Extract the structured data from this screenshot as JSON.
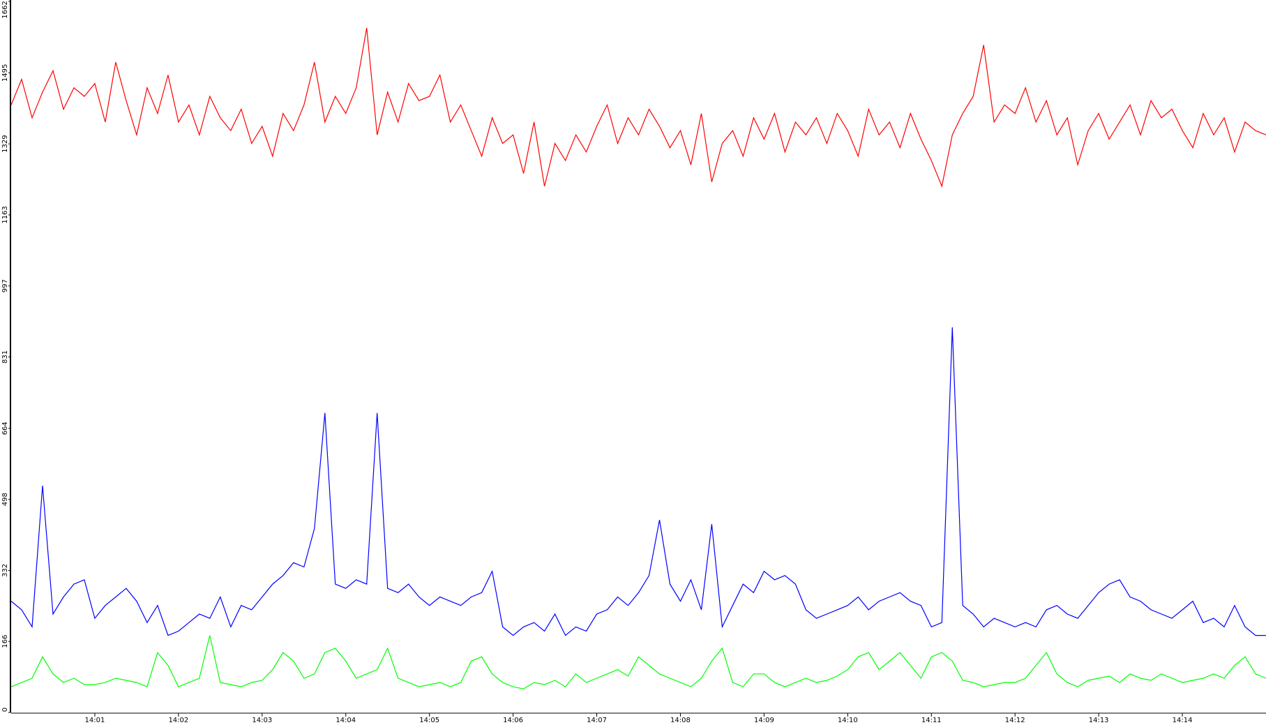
{
  "chart_data": {
    "type": "line",
    "categories": [
      null,
      null,
      null,
      null,
      null,
      null,
      null,
      null,
      "14:01",
      null,
      null,
      null,
      null,
      null,
      null,
      null,
      "14:02",
      null,
      null,
      null,
      null,
      null,
      null,
      null,
      "14:03",
      null,
      null,
      null,
      null,
      null,
      null,
      null,
      "14:04",
      null,
      null,
      null,
      null,
      null,
      null,
      null,
      "14:05",
      null,
      null,
      null,
      null,
      null,
      null,
      null,
      "14:06",
      null,
      null,
      null,
      null,
      null,
      null,
      null,
      "14:07",
      null,
      null,
      null,
      null,
      null,
      null,
      null,
      "14:08",
      null,
      null,
      null,
      null,
      null,
      null,
      null,
      "14:09",
      null,
      null,
      null,
      null,
      null,
      null,
      null,
      "14:10",
      null,
      null,
      null,
      null,
      null,
      null,
      null,
      "14:11",
      null,
      null,
      null,
      null,
      null,
      null,
      null,
      "14:12",
      null,
      null,
      null,
      null,
      null,
      null,
      null,
      "14:13",
      null,
      null,
      null,
      null,
      null,
      null,
      null,
      "14:14",
      null,
      null,
      null,
      null,
      null,
      null,
      null,
      null
    ],
    "series": [
      {
        "color": "#ff0000",
        "values": [
          1420,
          1480,
          1390,
          1450,
          1500,
          1410,
          1460,
          1440,
          1470,
          1380,
          1520,
          1430,
          1350,
          1460,
          1400,
          1490,
          1380,
          1420,
          1350,
          1440,
          1390,
          1360,
          1410,
          1330,
          1370,
          1300,
          1400,
          1360,
          1420,
          1520,
          1380,
          1440,
          1400,
          1460,
          1600,
          1350,
          1450,
          1380,
          1470,
          1430,
          1440,
          1490,
          1380,
          1420,
          1360,
          1300,
          1390,
          1330,
          1350,
          1260,
          1380,
          1230,
          1330,
          1290,
          1350,
          1310,
          1370,
          1420,
          1330,
          1390,
          1350,
          1410,
          1370,
          1320,
          1360,
          1280,
          1400,
          1240,
          1330,
          1360,
          1300,
          1390,
          1340,
          1400,
          1310,
          1380,
          1350,
          1390,
          1330,
          1400,
          1360,
          1300,
          1410,
          1350,
          1380,
          1320,
          1400,
          1340,
          1290,
          1230,
          1350,
          1400,
          1440,
          1560,
          1380,
          1420,
          1400,
          1460,
          1380,
          1430,
          1350,
          1390,
          1280,
          1360,
          1400,
          1340,
          1380,
          1420,
          1350,
          1430,
          1390,
          1410,
          1360,
          1320,
          1400,
          1350,
          1390,
          1310,
          1380,
          1360,
          1350
        ]
      },
      {
        "color": "#0000ff",
        "values": [
          260,
          240,
          200,
          530,
          230,
          270,
          300,
          310,
          220,
          250,
          270,
          290,
          260,
          210,
          250,
          180,
          190,
          210,
          230,
          220,
          270,
          200,
          250,
          240,
          270,
          300,
          320,
          350,
          340,
          430,
          700,
          300,
          290,
          310,
          300,
          700,
          290,
          280,
          300,
          270,
          250,
          270,
          260,
          250,
          270,
          280,
          330,
          200,
          180,
          200,
          210,
          190,
          230,
          180,
          200,
          190,
          230,
          240,
          270,
          250,
          280,
          320,
          450,
          300,
          260,
          310,
          240,
          440,
          200,
          250,
          300,
          280,
          330,
          310,
          320,
          300,
          240,
          220,
          230,
          240,
          250,
          270,
          240,
          260,
          270,
          280,
          260,
          250,
          200,
          210,
          900,
          250,
          230,
          200,
          220,
          210,
          200,
          210,
          200,
          240,
          250,
          230,
          220,
          250,
          280,
          300,
          310,
          270,
          260,
          240,
          230,
          220,
          240,
          260,
          210,
          220,
          200,
          250,
          200,
          180,
          180
        ]
      },
      {
        "color": "#00ff00",
        "values": [
          60,
          70,
          80,
          130,
          90,
          70,
          80,
          65,
          65,
          70,
          80,
          75,
          70,
          60,
          140,
          110,
          60,
          70,
          80,
          180,
          70,
          65,
          60,
          70,
          75,
          100,
          140,
          120,
          80,
          90,
          140,
          150,
          120,
          80,
          90,
          100,
          150,
          80,
          70,
          60,
          65,
          70,
          60,
          70,
          120,
          130,
          90,
          70,
          60,
          55,
          70,
          65,
          75,
          60,
          90,
          70,
          80,
          90,
          100,
          85,
          130,
          110,
          90,
          80,
          70,
          60,
          80,
          120,
          150,
          70,
          60,
          90,
          90,
          70,
          60,
          70,
          80,
          70,
          75,
          85,
          100,
          130,
          140,
          100,
          120,
          140,
          110,
          80,
          130,
          140,
          120,
          75,
          70,
          60,
          65,
          70,
          70,
          80,
          110,
          140,
          90,
          70,
          60,
          75,
          80,
          85,
          70,
          90,
          80,
          75,
          90,
          80,
          70,
          75,
          80,
          90,
          80,
          110,
          130,
          90,
          80
        ]
      }
    ],
    "ylim": [
      0,
      1662
    ],
    "yticks": [
      0,
      166,
      332,
      498,
      664,
      831,
      997,
      1163,
      1329,
      1495,
      1662
    ]
  }
}
